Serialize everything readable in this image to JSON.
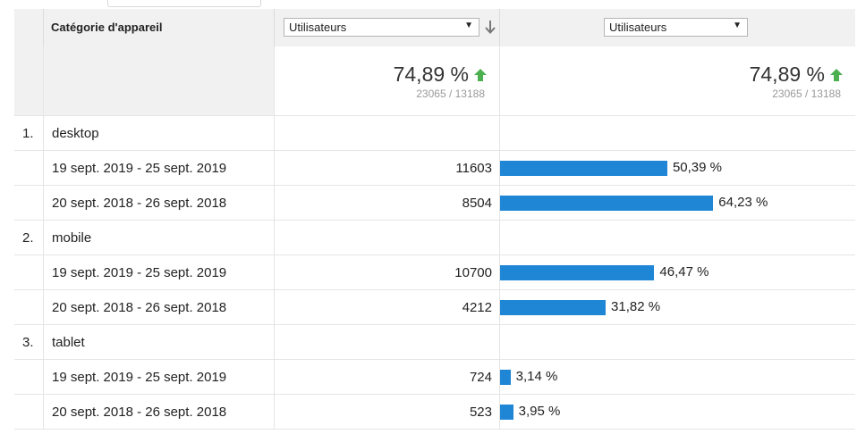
{
  "header": {
    "dimension_label": "Catégorie d'appareil",
    "metric_select_1": "Utilisateurs",
    "metric_select_2": "Utilisateurs"
  },
  "summary": {
    "col1": {
      "change": "74,89 %",
      "detail": "23065 / 13188"
    },
    "col2": {
      "change": "74,89 %",
      "detail": "23065 / 13188"
    }
  },
  "groups": [
    {
      "index": "1.",
      "name": "desktop",
      "rows": [
        {
          "period": "19 sept. 2019 - 25 sept. 2019",
          "value": "11603",
          "share": 50.39,
          "share_label": "50,39 %"
        },
        {
          "period": "20 sept. 2018 - 26 sept. 2018",
          "value": "8504",
          "share": 64.23,
          "share_label": "64,23 %"
        }
      ]
    },
    {
      "index": "2.",
      "name": "mobile",
      "rows": [
        {
          "period": "19 sept. 2019 - 25 sept. 2019",
          "value": "10700",
          "share": 46.47,
          "share_label": "46,47 %"
        },
        {
          "period": "20 sept. 2018 - 26 sept. 2018",
          "value": "4212",
          "share": 31.82,
          "share_label": "31,82 %"
        }
      ]
    },
    {
      "index": "3.",
      "name": "tablet",
      "rows": [
        {
          "period": "19 sept. 2019 - 25 sept. 2019",
          "value": "724",
          "share": 3.14,
          "share_label": "3,14 %"
        },
        {
          "period": "20 sept. 2018 - 26 sept. 2018",
          "value": "523",
          "share": 3.95,
          "share_label": "3,95 %"
        }
      ]
    }
  ],
  "colors": {
    "bar": "#1f86d6",
    "up_arrow": "#4caf50"
  },
  "icons": {
    "sort": "arrow-down-icon",
    "trend": "arrow-up-icon",
    "dropdown": "caret-down-icon"
  }
}
